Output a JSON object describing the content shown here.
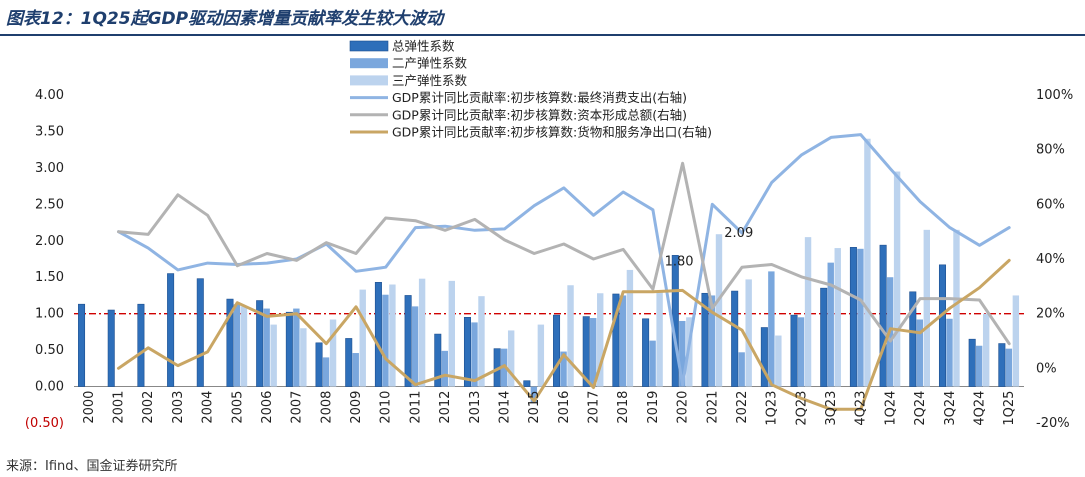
{
  "title": "图表12：1Q25起GDP驱动因素增量贡献率发生较大波动",
  "source": "来源：Ifind、国金证券研究所",
  "colors": {
    "total": "#2e6fba",
    "secondary": "#7aa7dd",
    "tertiary": "#bcd3ee",
    "consumption": "#8fb4e3",
    "capital": "#b3b3b3",
    "netexport": "#c9a664",
    "refline": "#d00000"
  },
  "chart_data": {
    "type": "bar+line",
    "categories": [
      "2000",
      "2001",
      "2002",
      "2003",
      "2004",
      "2005",
      "2006",
      "2007",
      "2008",
      "2009",
      "2010",
      "2011",
      "2012",
      "2013",
      "2014",
      "2015",
      "2016",
      "2017",
      "2018",
      "2019",
      "2020",
      "2021",
      "2022",
      "1Q23",
      "2Q23",
      "3Q23",
      "4Q23",
      "1Q24",
      "2Q24",
      "3Q24",
      "4Q24",
      "1Q25"
    ],
    "y_left": {
      "min": -0.5,
      "max": 4.0,
      "ticks": [
        "(0.50)",
        "0.00",
        "0.50",
        "1.00",
        "1.50",
        "2.00",
        "2.50",
        "3.00",
        "3.50",
        "4.00"
      ]
    },
    "y_right": {
      "min": -20,
      "max": 100,
      "ticks": [
        "-20%",
        "0%",
        "20%",
        "40%",
        "60%",
        "80%",
        "100%"
      ]
    },
    "reference_line": 1.0,
    "bar_series": [
      {
        "name": "总弹性系数",
        "values": [
          1.13,
          1.05,
          1.13,
          1.55,
          1.48,
          1.2,
          1.18,
          1.02,
          0.6,
          0.66,
          1.43,
          1.25,
          0.72,
          0.95,
          0.52,
          0.08,
          0.98,
          0.96,
          1.27,
          0.93,
          1.8,
          1.28,
          1.31,
          0.81,
          0.98,
          1.35,
          1.91,
          1.94,
          1.3,
          1.67,
          0.65,
          0.59
        ]
      },
      {
        "name": "二产弹性系数",
        "values": [
          null,
          null,
          null,
          null,
          null,
          1.13,
          1.07,
          1.07,
          0.4,
          0.46,
          1.26,
          1.1,
          0.49,
          0.88,
          0.52,
          -0.22,
          0.48,
          0.94,
          1.25,
          0.63,
          0.9,
          1.25,
          0.47,
          1.58,
          0.95,
          1.7,
          1.89,
          1.5,
          0.92,
          0.93,
          0.56,
          0.52
        ]
      },
      {
        "name": "三产弹性系数",
        "values": [
          null,
          null,
          null,
          null,
          null,
          1.1,
          0.85,
          0.8,
          0.92,
          1.33,
          1.4,
          1.48,
          1.45,
          1.24,
          0.77,
          0.85,
          1.39,
          1.28,
          1.6,
          1.3,
          0.95,
          2.09,
          1.47,
          0.7,
          2.05,
          1.9,
          3.4,
          2.95,
          2.15,
          2.15,
          1.0,
          1.25
        ]
      }
    ],
    "line_series": [
      {
        "name": "GDP累计同比贡献率:初步核算数:最终消费支出(右轴)",
        "values": [
          null,
          50,
          44,
          36,
          38.5,
          38,
          38.5,
          40,
          45.5,
          35.5,
          37,
          51.5,
          52,
          50.5,
          51,
          59.5,
          66,
          56,
          64.5,
          58,
          -6,
          60,
          49.5,
          68,
          78,
          84.5,
          85.5,
          73,
          61,
          51.5,
          45,
          51.5
        ]
      },
      {
        "name": "GDP累计同比贡献率:初步核算数:资本形成总额(右轴)",
        "values": [
          null,
          50,
          49,
          63.5,
          56,
          37.5,
          42,
          39.5,
          46,
          42,
          55,
          54,
          50.5,
          54.5,
          47,
          42,
          45.5,
          40,
          43.5,
          29,
          75,
          22,
          37,
          38,
          33.5,
          30.5,
          25,
          10,
          25.5,
          25.5,
          25,
          9
        ]
      },
      {
        "name": "GDP累计同比贡献率:初步核算数:货物和服务净出口(右轴)",
        "values": [
          null,
          0,
          7.5,
          1,
          6,
          24,
          19,
          20,
          9,
          22.5,
          3.5,
          -6,
          -2.5,
          -4.5,
          1,
          -12,
          5,
          -7,
          28,
          28,
          28.5,
          20.5,
          14,
          -6,
          -11,
          -15,
          -15,
          14.5,
          13,
          22,
          29.5,
          39.5
        ]
      }
    ],
    "data_labels": [
      {
        "category": "2020",
        "text": "1.80"
      },
      {
        "category": "2021",
        "text": "2.09"
      }
    ]
  }
}
